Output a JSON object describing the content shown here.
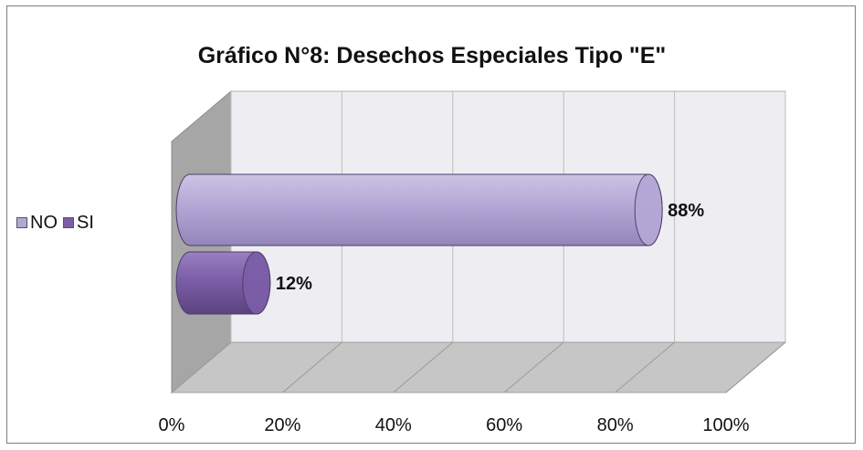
{
  "chart_data": {
    "type": "bar",
    "orientation": "horizontal",
    "style": "3d-cylinder",
    "title": "Gráfico N°8: Desechos Especiales Tipo \"E\"",
    "categories": [
      ""
    ],
    "series": [
      {
        "name": "NO",
        "values": [
          88
        ],
        "label": "88%",
        "color": "#b4a7d6"
      },
      {
        "name": "SI",
        "values": [
          12
        ],
        "label": "12%",
        "color": "#7b5ea7"
      }
    ],
    "xlim": [
      0,
      100
    ],
    "x_ticks": [
      "0%",
      "20%",
      "40%",
      "60%",
      "80%",
      "100%"
    ],
    "grid": true,
    "legend_position": "left"
  },
  "colors": {
    "back_wall": "#eeedf2",
    "side_wall": "#a6a6a6",
    "floor": "#c6c6c6",
    "gridline": "#bdbdbd"
  }
}
